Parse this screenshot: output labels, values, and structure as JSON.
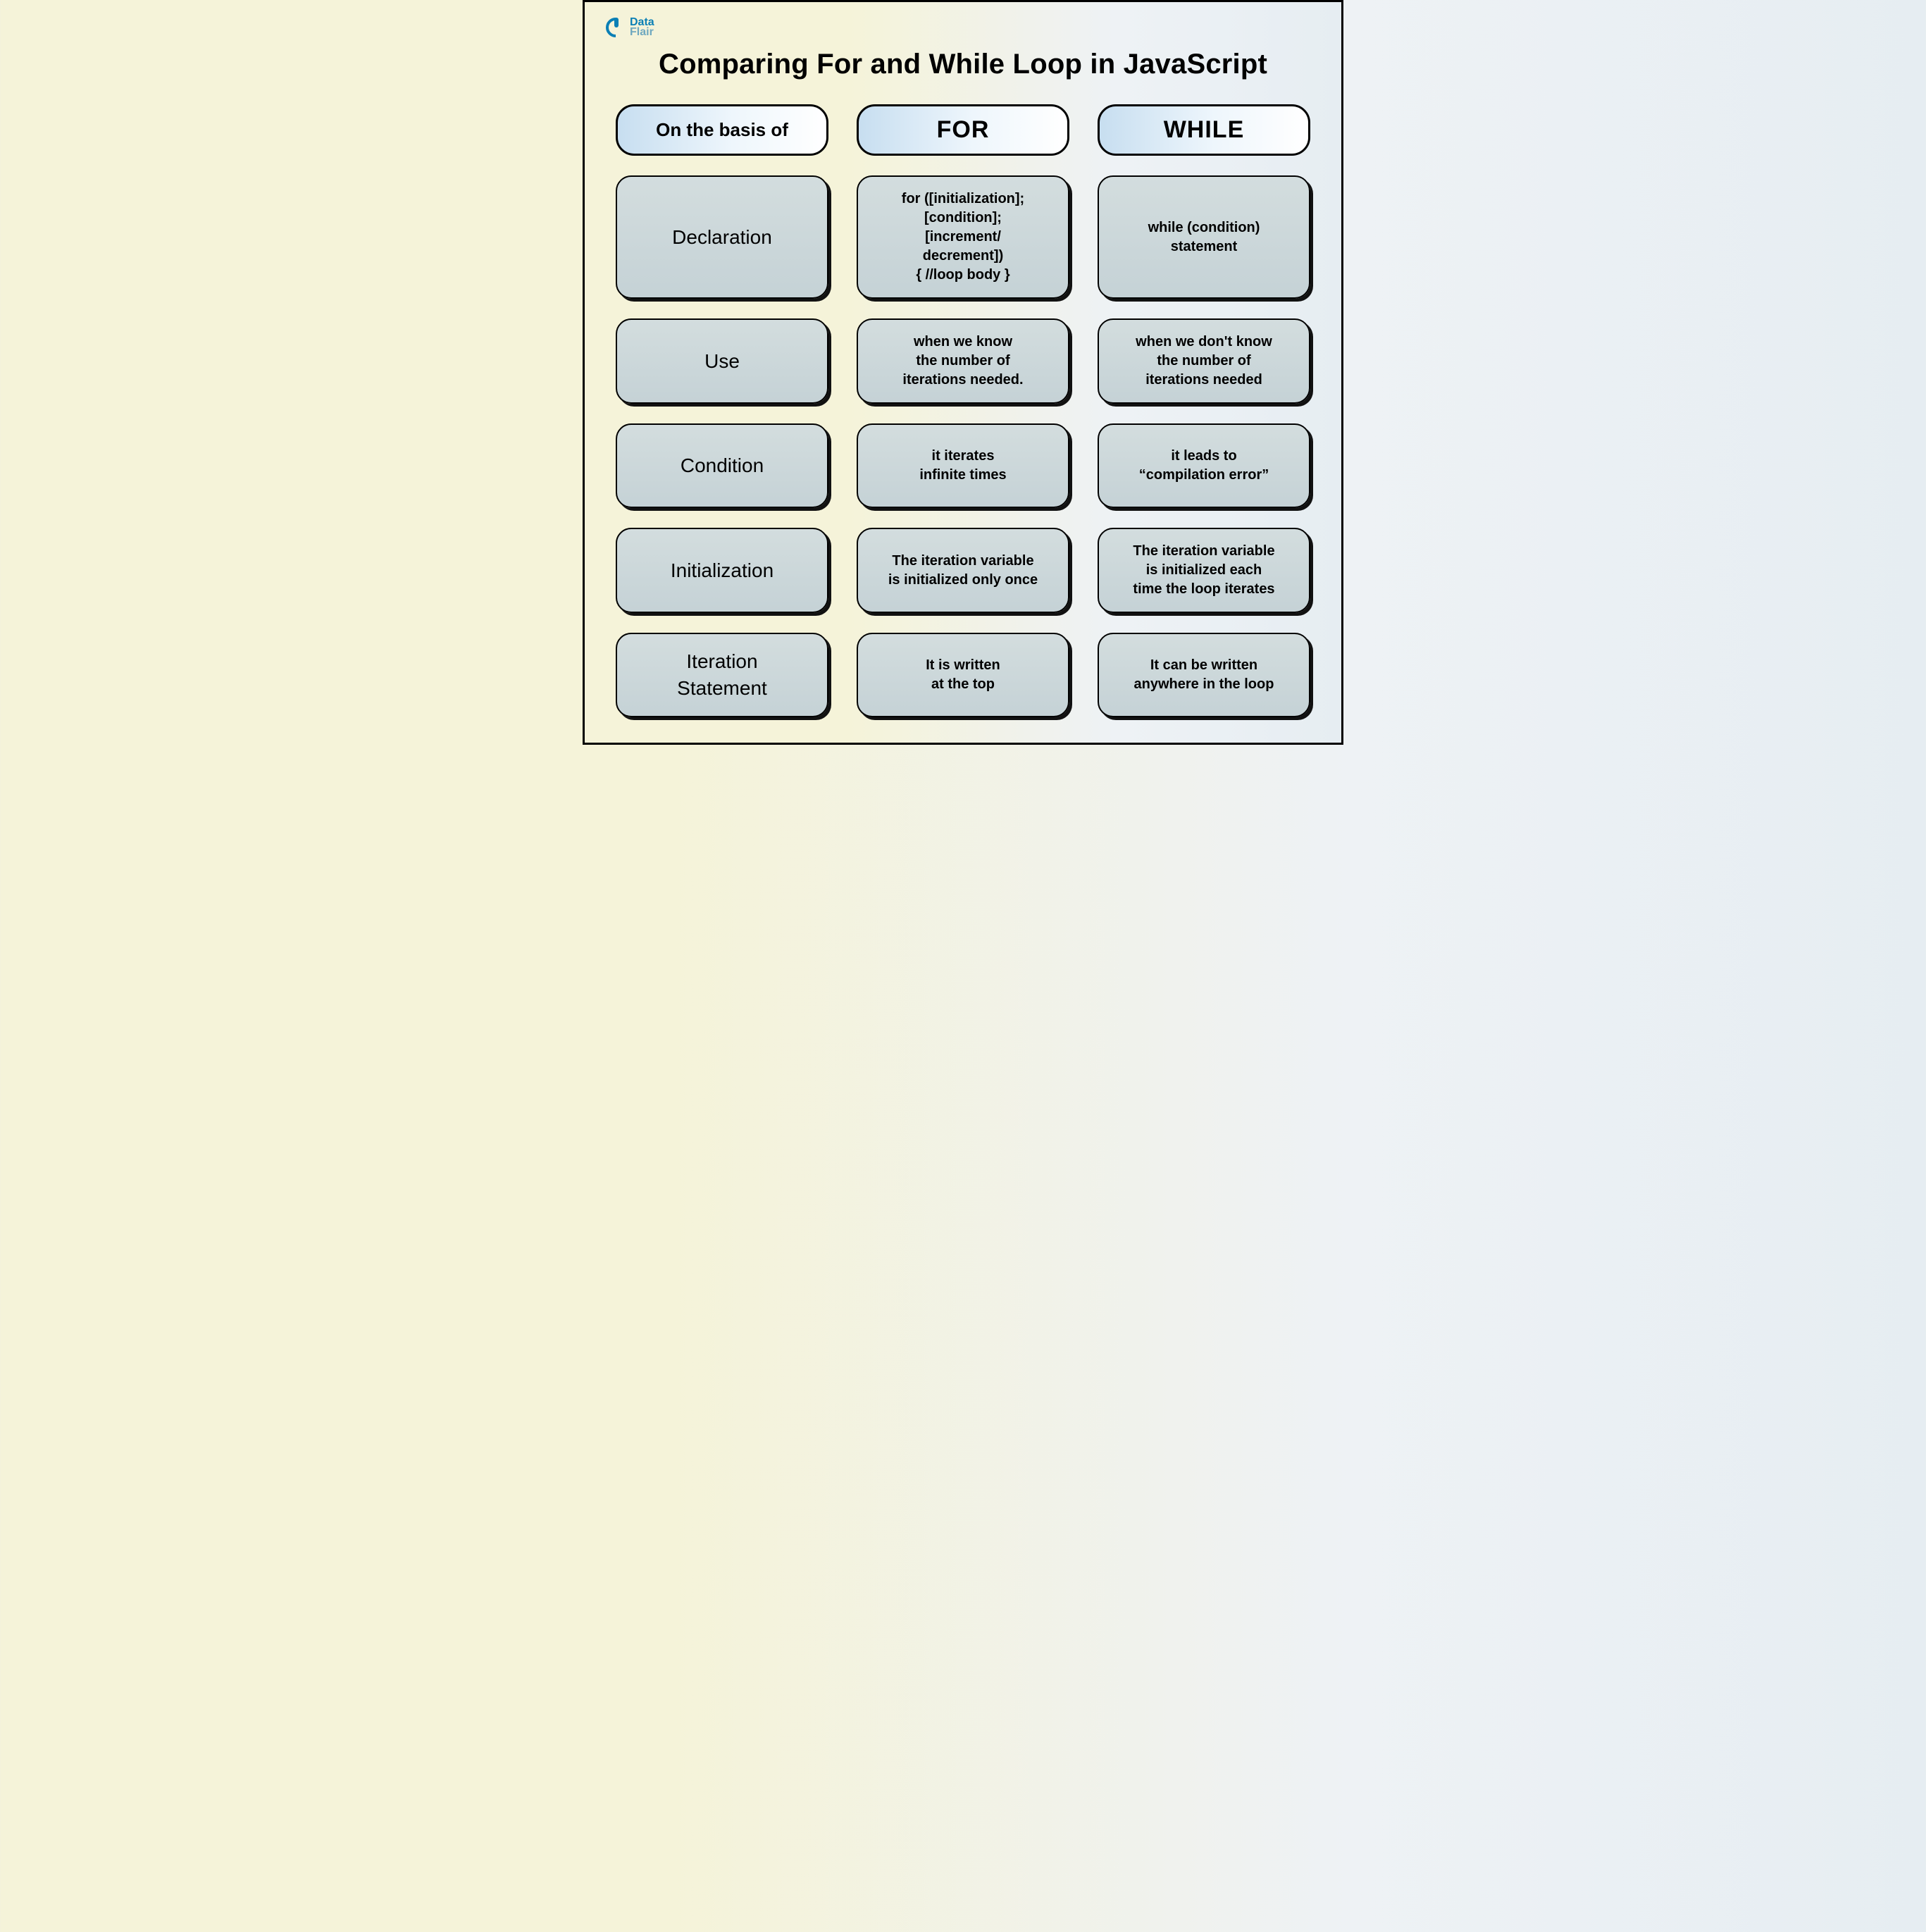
{
  "logo": {
    "line1": "Data",
    "line2": "Flair"
  },
  "title": "Comparing For and While Loop in JavaScript",
  "headers": {
    "basis": "On the basis of",
    "for": "FOR",
    "while": "WHILE"
  },
  "rows": [
    {
      "basis": "Declaration",
      "for": "for ([initialization];\n[condition];\n[increment/\ndecrement])\n{ //loop body }",
      "while": "while (condition)\nstatement"
    },
    {
      "basis": "Use",
      "for": "when we know\nthe number of\niterations needed.",
      "while": "when we don't know\nthe number of\niterations needed"
    },
    {
      "basis": "Condition",
      "for": "it iterates\ninfinite times",
      "while": "it leads to\n“compilation error”"
    },
    {
      "basis": "Initialization",
      "for": "The iteration variable\nis initialized only once",
      "while": "The iteration variable\nis initialized each\ntime the loop iterates"
    },
    {
      "basis": "Iteration\nStatement",
      "for": "It is written\nat the top",
      "while": "It can be written\nanywhere in the loop"
    }
  ],
  "style": {
    "type": "comparison-table-infographic",
    "columns": 3,
    "rows": 5,
    "background_gradient": [
      "#f5f3d9",
      "#eef2f5",
      "#e6edf2"
    ],
    "header_pill": {
      "border_color": "#000000",
      "border_width": 3,
      "border_radius": 26,
      "fill_gradient": [
        "#c7def0",
        "#eef6fc",
        "#ffffff"
      ],
      "font_weight": 800,
      "basis_fontsize": 26,
      "loop_fontsize": 34
    },
    "cell": {
      "border_color": "#000000",
      "border_width": 2,
      "border_radius": 22,
      "fill_gradient": [
        "#d3ddde",
        "#c5d2d6"
      ],
      "shadow_color": "#111111",
      "shadow_offset": [
        4,
        4
      ],
      "basis_fontsize": 28,
      "content_fontsize": 20,
      "font_weight": 600
    },
    "title_fontsize": 40,
    "title_color": "#000000",
    "frame_border_color": "#000000",
    "frame_border_width": 3,
    "logo_colors": {
      "primary": "#0a7fb5",
      "secondary": "#6fa8bf"
    }
  }
}
